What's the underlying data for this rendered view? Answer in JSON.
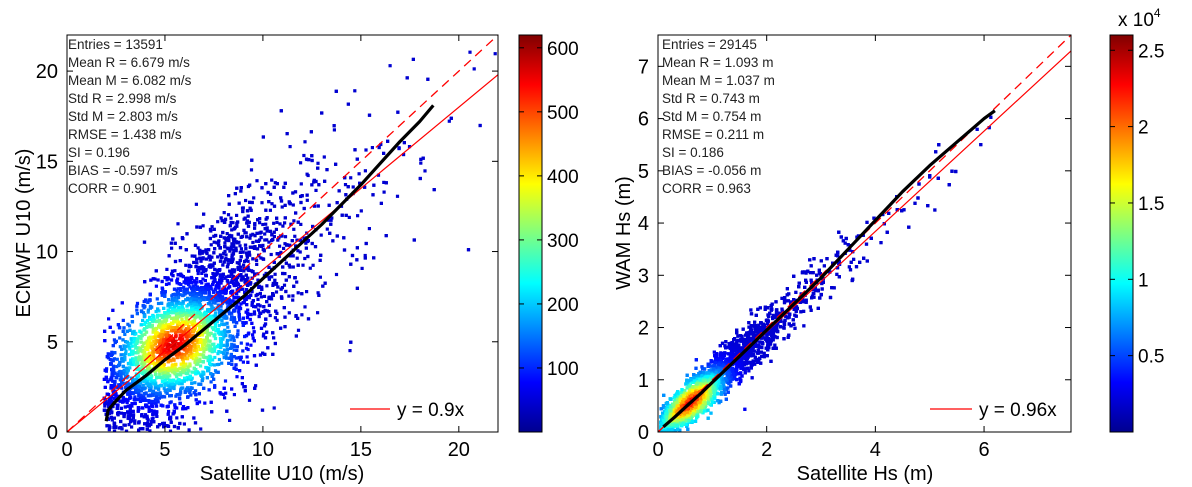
{
  "chart_data": [
    {
      "type": "scatter",
      "title": "",
      "xlabel": "Satellite U10 (m/s)",
      "ylabel": "ECMWF  U10 (m/s)",
      "xlim": [
        0,
        22
      ],
      "ylim": [
        0,
        22
      ],
      "xticks": [
        0,
        5,
        10,
        15,
        20
      ],
      "yticks": [
        0,
        5,
        10,
        15,
        20
      ],
      "grid": false,
      "fit_slope": 0.9,
      "legend": {
        "label": "y = 0.9x",
        "placement": "bottom-right"
      },
      "stats": [
        "Entries = 13591",
        "Mean R = 6.679 m/s",
        "Mean M = 6.082 m/s",
        "Std R = 2.998 m/s",
        "Std M = 2.803 m/s",
        "RMSE = 1.438 m/s",
        "SI = 0.196",
        "BIAS = -0.597 m/s",
        "CORR = 0.901"
      ],
      "colorbar": {
        "colormap": "jet",
        "range": [
          0,
          620
        ],
        "ticks": [
          100,
          200,
          300,
          400,
          500,
          600
        ],
        "tick_labels": [
          "100",
          "200",
          "300",
          "400",
          "500",
          "600"
        ],
        "exponent_label": ""
      },
      "density_center": [
        5.5,
        4.8
      ],
      "median_curve": {
        "x": [
          2.0,
          2.1,
          2.4,
          3,
          4,
          5,
          6,
          7,
          8,
          9,
          10,
          11,
          12,
          13,
          14,
          15,
          16,
          17,
          18,
          18.7
        ],
        "y": [
          0.6,
          1.2,
          1.6,
          2.3,
          3.1,
          4.0,
          4.8,
          5.7,
          6.6,
          7.5,
          8.5,
          9.5,
          10.5,
          11.5,
          12.6,
          13.7,
          14.9,
          16.1,
          17.2,
          18.1
        ]
      }
    },
    {
      "type": "scatter",
      "title": "",
      "xlabel": "Satellite Hs (m)",
      "ylabel": "WAM  Hs (m)",
      "xlim": [
        0,
        7.6
      ],
      "ylim": [
        0,
        7.6
      ],
      "xticks": [
        0,
        2,
        4,
        6
      ],
      "yticks": [
        0,
        1,
        2,
        3,
        4,
        5,
        6,
        7
      ],
      "grid": false,
      "fit_slope": 0.96,
      "legend": {
        "label": "y = 0.96x",
        "placement": "bottom-right"
      },
      "stats": [
        "Entries = 29145",
        "Mean R = 1.093 m",
        "Mean M = 1.037 m",
        "Std R = 0.743 m",
        "Std M = 0.754 m",
        "RMSE = 0.211 m",
        "SI = 0.186",
        "BIAS = -0.056 m",
        "CORR = 0.963"
      ],
      "colorbar": {
        "colormap": "jet",
        "range": [
          0,
          26000
        ],
        "ticks": [
          5000,
          10000,
          15000,
          20000,
          25000
        ],
        "tick_labels": [
          "0.5",
          "1",
          "1.5",
          "2",
          "2.5"
        ],
        "exponent_label": "x 10",
        "exponent_power": "4"
      },
      "density_center": [
        0.6,
        0.55
      ],
      "median_curve": {
        "x": [
          0.1,
          0.3,
          0.5,
          0.8,
          1,
          1.5,
          2,
          2.5,
          3,
          3.5,
          4,
          4.5,
          5,
          5.5,
          6,
          6.2
        ],
        "y": [
          0.1,
          0.28,
          0.47,
          0.75,
          0.95,
          1.45,
          1.95,
          2.45,
          2.95,
          3.5,
          4.05,
          4.6,
          5.1,
          5.55,
          6.0,
          6.15
        ]
      }
    }
  ]
}
